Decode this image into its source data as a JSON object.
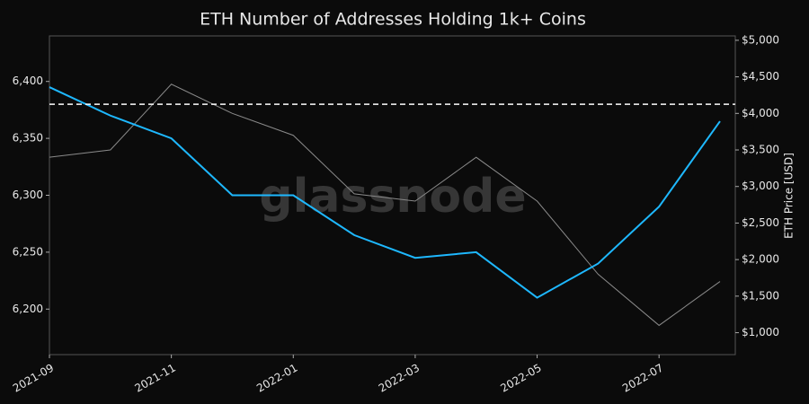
{
  "chart_data": {
    "type": "line",
    "title": "ETH Number of Addresses Holding 1k+ Coins",
    "watermark": "glassnode",
    "y2_label": "ETH Price [USD]",
    "x": [
      "2021-09",
      "2021-10",
      "2021-11",
      "2021-12",
      "2022-01",
      "2022-02",
      "2022-03",
      "2022-04",
      "2022-05",
      "2022-06",
      "2022-07",
      "2022-08"
    ],
    "xlim": [
      "2021-09",
      "2022-08"
    ],
    "xticks": [
      "2021-09",
      "2021-11",
      "2022-01",
      "2022-03",
      "2022-05",
      "2022-07"
    ],
    "ylim": [
      6160,
      6440
    ],
    "yticks": [
      {
        "value": 6200,
        "label": "6,200"
      },
      {
        "value": 6250,
        "label": "6,250"
      },
      {
        "value": 6300,
        "label": "6,300"
      },
      {
        "value": 6350,
        "label": "6,350"
      },
      {
        "value": 6400,
        "label": "6,400"
      }
    ],
    "y2lim": [
      700,
      5060
    ],
    "y2ticks": [
      {
        "value": 1000,
        "label": "$1,000"
      },
      {
        "value": 1500,
        "label": "$1,500"
      },
      {
        "value": 2000,
        "label": "$2,000"
      },
      {
        "value": 2500,
        "label": "$2,500"
      },
      {
        "value": 3000,
        "label": "$3,000"
      },
      {
        "value": 3500,
        "label": "$3,500"
      },
      {
        "value": 4000,
        "label": "$4,000"
      },
      {
        "value": 4500,
        "label": "$4,500"
      },
      {
        "value": 5000,
        "label": "$5,000"
      }
    ],
    "reference_line": 6380,
    "series": [
      {
        "name": "Addresses",
        "color": "#1eb8ff",
        "values": [
          6395,
          6370,
          6350,
          6300,
          6300,
          6265,
          6245,
          6250,
          6210,
          6240,
          6290,
          6365
        ]
      },
      {
        "name": "ETH Price",
        "color": "#8a8a8a",
        "axis": "y2",
        "values": [
          3400,
          3500,
          4400,
          4000,
          3700,
          2900,
          2800,
          3400,
          2800,
          1800,
          1100,
          1700
        ]
      }
    ]
  }
}
